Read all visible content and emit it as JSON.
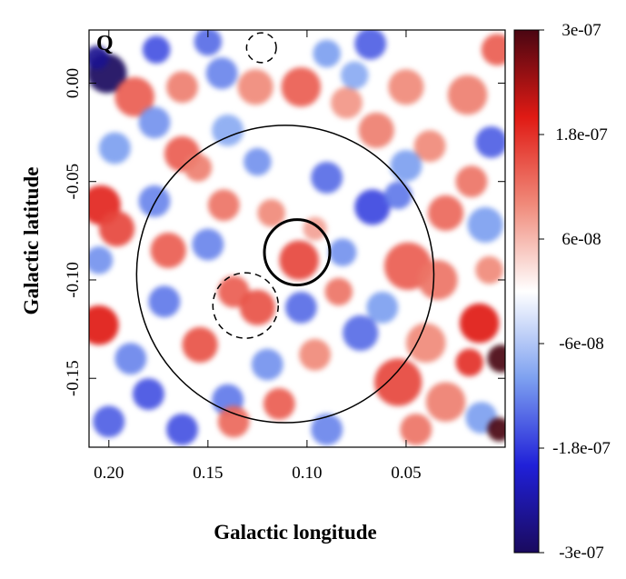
{
  "chart_data": {
    "type": "heatmap",
    "title": "",
    "panel_label": "Q",
    "xlabel": "Galactic longitude",
    "ylabel": "Galactic latitude",
    "xlim": [
      0.21,
      0.0
    ],
    "ylim": [
      -0.185,
      0.027
    ],
    "x_ticks": [
      0.2,
      0.15,
      0.1,
      0.05
    ],
    "x_tick_labels": [
      "0.20",
      "0.15",
      "0.10",
      "0.05"
    ],
    "y_ticks": [
      0.0,
      -0.05,
      -0.1,
      -0.15
    ],
    "y_tick_labels": [
      "0.00",
      "-0.05",
      "-0.10",
      "-0.15"
    ],
    "colorbar": {
      "range": [
        -3e-07,
        3e-07
      ],
      "ticks": [
        3e-07,
        1.8e-07,
        6e-08,
        -6e-08,
        -1.8e-07,
        -3e-07
      ],
      "tick_labels": [
        "3e-07",
        "1.8e-07",
        "6e-08",
        "-6e-08",
        "-1.8e-07",
        "-3e-07"
      ],
      "colormap": [
        "#1a0a5e",
        "#2020d8",
        "#7da0f0",
        "#ffffff",
        "#f08a7a",
        "#e01a14",
        "#4a0612"
      ]
    },
    "circles": [
      {
        "name": "outer-region",
        "center_l": 0.111,
        "center_b": -0.097,
        "radius_deg": 0.075,
        "style": "solid",
        "weight": "thin"
      },
      {
        "name": "inner-source",
        "center_l": 0.105,
        "center_b": -0.086,
        "radius_deg": 0.0165,
        "style": "solid",
        "weight": "thick"
      },
      {
        "name": "dashed-source-south",
        "center_l": 0.131,
        "center_b": -0.113,
        "radius_deg": 0.0165,
        "style": "dashed",
        "weight": "thin"
      },
      {
        "name": "dashed-source-north",
        "center_l": 0.123,
        "center_b": 0.018,
        "radius_deg": 0.0075,
        "style": "dashed",
        "weight": "thin"
      }
    ],
    "blobs": [
      {
        "l": 0.201,
        "b": 0.005,
        "r": 0.01,
        "v": -3e-07
      },
      {
        "l": 0.206,
        "b": 0.013,
        "r": 0.006,
        "v": -2.6e-07
      },
      {
        "l": 0.176,
        "b": 0.017,
        "r": 0.007,
        "v": -1.6e-07
      },
      {
        "l": 0.15,
        "b": 0.021,
        "r": 0.007,
        "v": -1.4e-07
      },
      {
        "l": 0.068,
        "b": 0.02,
        "r": 0.008,
        "v": -1.5e-07
      },
      {
        "l": 0.09,
        "b": 0.015,
        "r": 0.007,
        "v": -1e-07
      },
      {
        "l": 0.004,
        "b": 0.017,
        "r": 0.008,
        "v": 1.4e-07
      },
      {
        "l": 0.187,
        "b": -0.007,
        "r": 0.01,
        "v": 1.4e-07
      },
      {
        "l": 0.163,
        "b": -0.002,
        "r": 0.008,
        "v": 1.1e-07
      },
      {
        "l": 0.126,
        "b": -0.002,
        "r": 0.009,
        "v": 1e-07
      },
      {
        "l": 0.103,
        "b": -0.002,
        "r": 0.01,
        "v": 1.4e-07
      },
      {
        "l": 0.08,
        "b": -0.01,
        "r": 0.008,
        "v": 9e-08
      },
      {
        "l": 0.05,
        "b": -0.002,
        "r": 0.009,
        "v": 1e-07
      },
      {
        "l": 0.019,
        "b": -0.006,
        "r": 0.01,
        "v": 1.1e-07
      },
      {
        "l": 0.143,
        "b": 0.005,
        "r": 0.008,
        "v": -1.2e-07
      },
      {
        "l": 0.076,
        "b": 0.004,
        "r": 0.007,
        "v": -9e-08
      },
      {
        "l": 0.177,
        "b": -0.02,
        "r": 0.008,
        "v": -1.1e-07
      },
      {
        "l": 0.14,
        "b": -0.024,
        "r": 0.008,
        "v": -9e-08
      },
      {
        "l": 0.065,
        "b": -0.024,
        "r": 0.009,
        "v": 1.1e-07
      },
      {
        "l": 0.038,
        "b": -0.032,
        "r": 0.008,
        "v": 1e-07
      },
      {
        "l": 0.007,
        "b": -0.03,
        "r": 0.008,
        "v": -1.5e-07
      },
      {
        "l": 0.197,
        "b": -0.033,
        "r": 0.008,
        "v": -1e-07
      },
      {
        "l": 0.163,
        "b": -0.036,
        "r": 0.009,
        "v": 1.4e-07
      },
      {
        "l": 0.155,
        "b": -0.043,
        "r": 0.007,
        "v": 1.1e-07
      },
      {
        "l": 0.125,
        "b": -0.04,
        "r": 0.007,
        "v": -1.1e-07
      },
      {
        "l": 0.09,
        "b": -0.048,
        "r": 0.008,
        "v": -1.4e-07
      },
      {
        "l": 0.05,
        "b": -0.042,
        "r": 0.008,
        "v": -1e-07
      },
      {
        "l": 0.017,
        "b": -0.05,
        "r": 0.008,
        "v": 1.2e-07
      },
      {
        "l": 0.204,
        "b": -0.062,
        "r": 0.01,
        "v": 1.9e-07
      },
      {
        "l": 0.196,
        "b": -0.074,
        "r": 0.009,
        "v": 1.6e-07
      },
      {
        "l": 0.177,
        "b": -0.06,
        "r": 0.008,
        "v": -1.2e-07
      },
      {
        "l": 0.142,
        "b": -0.062,
        "r": 0.008,
        "v": 1.2e-07
      },
      {
        "l": 0.118,
        "b": -0.066,
        "r": 0.007,
        "v": 1e-07
      },
      {
        "l": 0.096,
        "b": -0.074,
        "r": 0.006,
        "v": 8e-08
      },
      {
        "l": 0.067,
        "b": -0.063,
        "r": 0.009,
        "v": -1.7e-07
      },
      {
        "l": 0.054,
        "b": -0.057,
        "r": 0.007,
        "v": -1.3e-07
      },
      {
        "l": 0.03,
        "b": -0.066,
        "r": 0.009,
        "v": 1.3e-07
      },
      {
        "l": 0.01,
        "b": -0.072,
        "r": 0.009,
        "v": -1e-07
      },
      {
        "l": 0.17,
        "b": -0.085,
        "r": 0.009,
        "v": 1.4e-07
      },
      {
        "l": 0.15,
        "b": -0.082,
        "r": 0.008,
        "v": -1.2e-07
      },
      {
        "l": 0.104,
        "b": -0.09,
        "r": 0.01,
        "v": 1.6e-07
      },
      {
        "l": 0.082,
        "b": -0.086,
        "r": 0.007,
        "v": -1.1e-07
      },
      {
        "l": 0.049,
        "b": -0.093,
        "r": 0.012,
        "v": 1.4e-07
      },
      {
        "l": 0.034,
        "b": -0.1,
        "r": 0.01,
        "v": 1.2e-07
      },
      {
        "l": 0.008,
        "b": -0.095,
        "r": 0.007,
        "v": 1e-07
      },
      {
        "l": 0.205,
        "b": -0.09,
        "r": 0.007,
        "v": -1.1e-07
      },
      {
        "l": 0.137,
        "b": -0.106,
        "r": 0.008,
        "v": 1.4e-07
      },
      {
        "l": 0.125,
        "b": -0.114,
        "r": 0.009,
        "v": 1.5e-07
      },
      {
        "l": 0.172,
        "b": -0.111,
        "r": 0.008,
        "v": -1.3e-07
      },
      {
        "l": 0.103,
        "b": -0.114,
        "r": 0.008,
        "v": -1.4e-07
      },
      {
        "l": 0.084,
        "b": -0.106,
        "r": 0.007,
        "v": 1.2e-07
      },
      {
        "l": 0.062,
        "b": -0.114,
        "r": 0.008,
        "v": -1e-07
      },
      {
        "l": 0.205,
        "b": -0.123,
        "r": 0.01,
        "v": 2e-07
      },
      {
        "l": 0.189,
        "b": -0.14,
        "r": 0.008,
        "v": -1.2e-07
      },
      {
        "l": 0.154,
        "b": -0.133,
        "r": 0.009,
        "v": 1.5e-07
      },
      {
        "l": 0.12,
        "b": -0.143,
        "r": 0.008,
        "v": -1.1e-07
      },
      {
        "l": 0.096,
        "b": -0.138,
        "r": 0.008,
        "v": 1e-07
      },
      {
        "l": 0.073,
        "b": -0.127,
        "r": 0.009,
        "v": -1.4e-07
      },
      {
        "l": 0.04,
        "b": -0.132,
        "r": 0.01,
        "v": 1e-07
      },
      {
        "l": 0.013,
        "b": -0.122,
        "r": 0.01,
        "v": 2e-07
      },
      {
        "l": 0.002,
        "b": -0.14,
        "r": 0.007,
        "v": 3e-07
      },
      {
        "l": 0.018,
        "b": -0.142,
        "r": 0.007,
        "v": 1.8e-07
      },
      {
        "l": 0.18,
        "b": -0.158,
        "r": 0.008,
        "v": -1.6e-07
      },
      {
        "l": 0.14,
        "b": -0.161,
        "r": 0.008,
        "v": -1.3e-07
      },
      {
        "l": 0.114,
        "b": -0.163,
        "r": 0.008,
        "v": 1.4e-07
      },
      {
        "l": 0.054,
        "b": -0.152,
        "r": 0.012,
        "v": 1.6e-07
      },
      {
        "l": 0.03,
        "b": -0.162,
        "r": 0.01,
        "v": 1.1e-07
      },
      {
        "l": 0.012,
        "b": -0.17,
        "r": 0.008,
        "v": -1e-07
      },
      {
        "l": 0.2,
        "b": -0.172,
        "r": 0.008,
        "v": -1.5e-07
      },
      {
        "l": 0.163,
        "b": -0.176,
        "r": 0.008,
        "v": -1.6e-07
      },
      {
        "l": 0.137,
        "b": -0.172,
        "r": 0.008,
        "v": 1.3e-07
      },
      {
        "l": 0.09,
        "b": -0.176,
        "r": 0.008,
        "v": -1.2e-07
      },
      {
        "l": 0.045,
        "b": -0.176,
        "r": 0.008,
        "v": 1.2e-07
      },
      {
        "l": 0.003,
        "b": -0.176,
        "r": 0.006,
        "v": 3e-07
      }
    ]
  }
}
